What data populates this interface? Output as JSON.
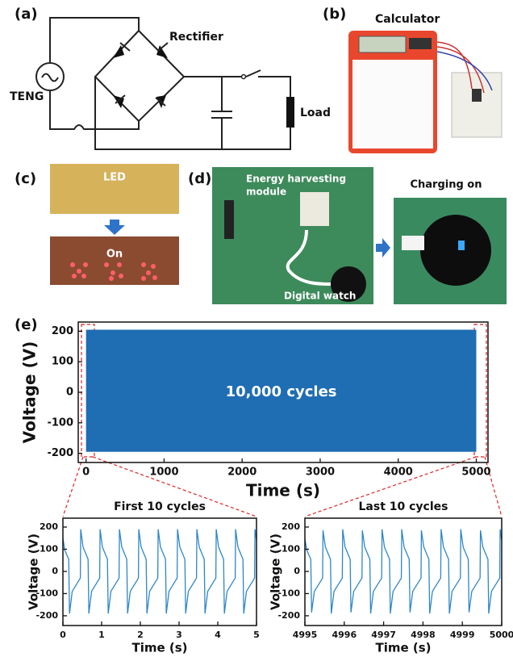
{
  "panel_labels": [
    "(a)",
    "(b)",
    "(c)",
    "(d)",
    "(e)"
  ],
  "circuit": {
    "source": "TENG",
    "rectifier": "Rectifier",
    "load": "Load"
  },
  "calculator": {
    "title": "Calculator"
  },
  "led": {
    "off": "LED",
    "on": "On"
  },
  "watch": {
    "module": [
      "Energy harvesting",
      "module"
    ],
    "device": "Digital watch",
    "charging": "Charging on"
  },
  "chart_data": [
    {
      "type": "band",
      "xlabel": "Time (s)",
      "ylabel": "Voltage (V)",
      "annotation": "10,000 cycles",
      "x": [
        0,
        5000
      ],
      "upper": [
        205,
        205
      ],
      "lower": [
        -195,
        -195
      ],
      "color": "#1f6db3",
      "xlim": [
        -100,
        5150
      ],
      "ylim": [
        -230,
        230
      ],
      "xticks": [
        0,
        1000,
        2000,
        3000,
        4000,
        5000
      ],
      "yticks": [
        -200,
        -100,
        0,
        100,
        200
      ]
    },
    {
      "type": "line",
      "title": "First 10 cycles",
      "xlabel": "Time (s)",
      "ylabel": "Voltage (V)",
      "color": "#2e86c8",
      "xlim": [
        0,
        5
      ],
      "ylim": [
        -244,
        240
      ],
      "xticks": [
        0,
        1,
        2,
        3,
        4,
        5
      ],
      "yticks": [
        -200,
        -100,
        0,
        100,
        200
      ],
      "x": [
        0,
        0.05,
        0.15,
        0.17,
        0.24,
        0.45,
        0.46,
        0.52,
        0.65,
        0.67,
        0.74,
        0.95,
        0.96,
        1.02,
        1.15,
        1.17,
        1.24,
        1.45,
        1.46,
        1.52,
        1.65,
        1.67,
        1.74,
        1.95,
        1.96,
        2.02,
        2.15,
        2.17,
        2.24,
        2.45,
        2.46,
        2.52,
        2.65,
        2.67,
        2.74,
        2.95,
        2.96,
        3.02,
        3.15,
        3.17,
        3.24,
        3.45,
        3.46,
        3.52,
        3.65,
        3.67,
        3.74,
        3.95,
        3.96,
        4.02,
        4.15,
        4.17,
        4.24,
        4.45,
        4.46,
        4.52,
        4.65,
        4.67,
        4.74,
        4.95,
        4.96,
        5
      ],
      "values": [
        150,
        95,
        55,
        -190,
        -90,
        -30,
        190,
        110,
        55,
        -190,
        -90,
        -30,
        190,
        110,
        55,
        -190,
        -90,
        -30,
        190,
        110,
        55,
        -190,
        -90,
        -30,
        190,
        110,
        55,
        -190,
        -90,
        -30,
        190,
        110,
        55,
        -190,
        -90,
        -30,
        190,
        110,
        55,
        -190,
        -90,
        -30,
        190,
        110,
        55,
        -190,
        -90,
        -30,
        190,
        110,
        55,
        -190,
        -90,
        -30,
        190,
        110,
        55,
        -190,
        -90,
        -30,
        190,
        140
      ]
    },
    {
      "type": "line",
      "title": "Last 10 cycles",
      "xlabel": "Time (s)",
      "ylabel": "Voltage (V)",
      "color": "#2e86c8",
      "xlim": [
        4995,
        5000
      ],
      "ylim": [
        -244,
        240
      ],
      "xticks": [
        4995,
        4996,
        4997,
        4998,
        4999,
        5000
      ],
      "yticks": [
        -200,
        -100,
        0,
        100,
        200
      ],
      "x": [
        4995,
        4995.05,
        4995.15,
        4995.17,
        4995.24,
        4995.45,
        4995.46,
        4995.52,
        4995.65,
        4995.67,
        4995.74,
        4995.95,
        4995.96,
        4996.02,
        4996.15,
        4996.17,
        4996.24,
        4996.45,
        4996.46,
        4996.52,
        4996.65,
        4996.67,
        4996.74,
        4996.95,
        4996.96,
        4997.02,
        4997.15,
        4997.17,
        4997.24,
        4997.45,
        4997.46,
        4997.52,
        4997.65,
        4997.67,
        4997.74,
        4997.95,
        4997.96,
        4998.02,
        4998.15,
        4998.17,
        4998.24,
        4998.45,
        4998.46,
        4998.52,
        4998.65,
        4998.67,
        4998.74,
        4998.95,
        4998.96,
        4999.02,
        4999.15,
        4999.17,
        4999.24,
        4999.45,
        4999.46,
        4999.52,
        4999.65,
        4999.67,
        4999.74,
        4999.95,
        4999.96,
        5000
      ],
      "values": [
        145,
        95,
        55,
        -185,
        -90,
        -30,
        185,
        110,
        55,
        -190,
        -90,
        -30,
        190,
        110,
        55,
        -185,
        -90,
        -30,
        185,
        110,
        55,
        -190,
        -90,
        -30,
        190,
        110,
        55,
        -190,
        -90,
        -30,
        190,
        110,
        55,
        -185,
        -90,
        -30,
        185,
        110,
        55,
        -190,
        -90,
        -30,
        190,
        110,
        55,
        -190,
        -90,
        -30,
        190,
        110,
        55,
        -185,
        -90,
        -30,
        185,
        110,
        55,
        -190,
        -90,
        -30,
        190,
        140
      ]
    }
  ]
}
